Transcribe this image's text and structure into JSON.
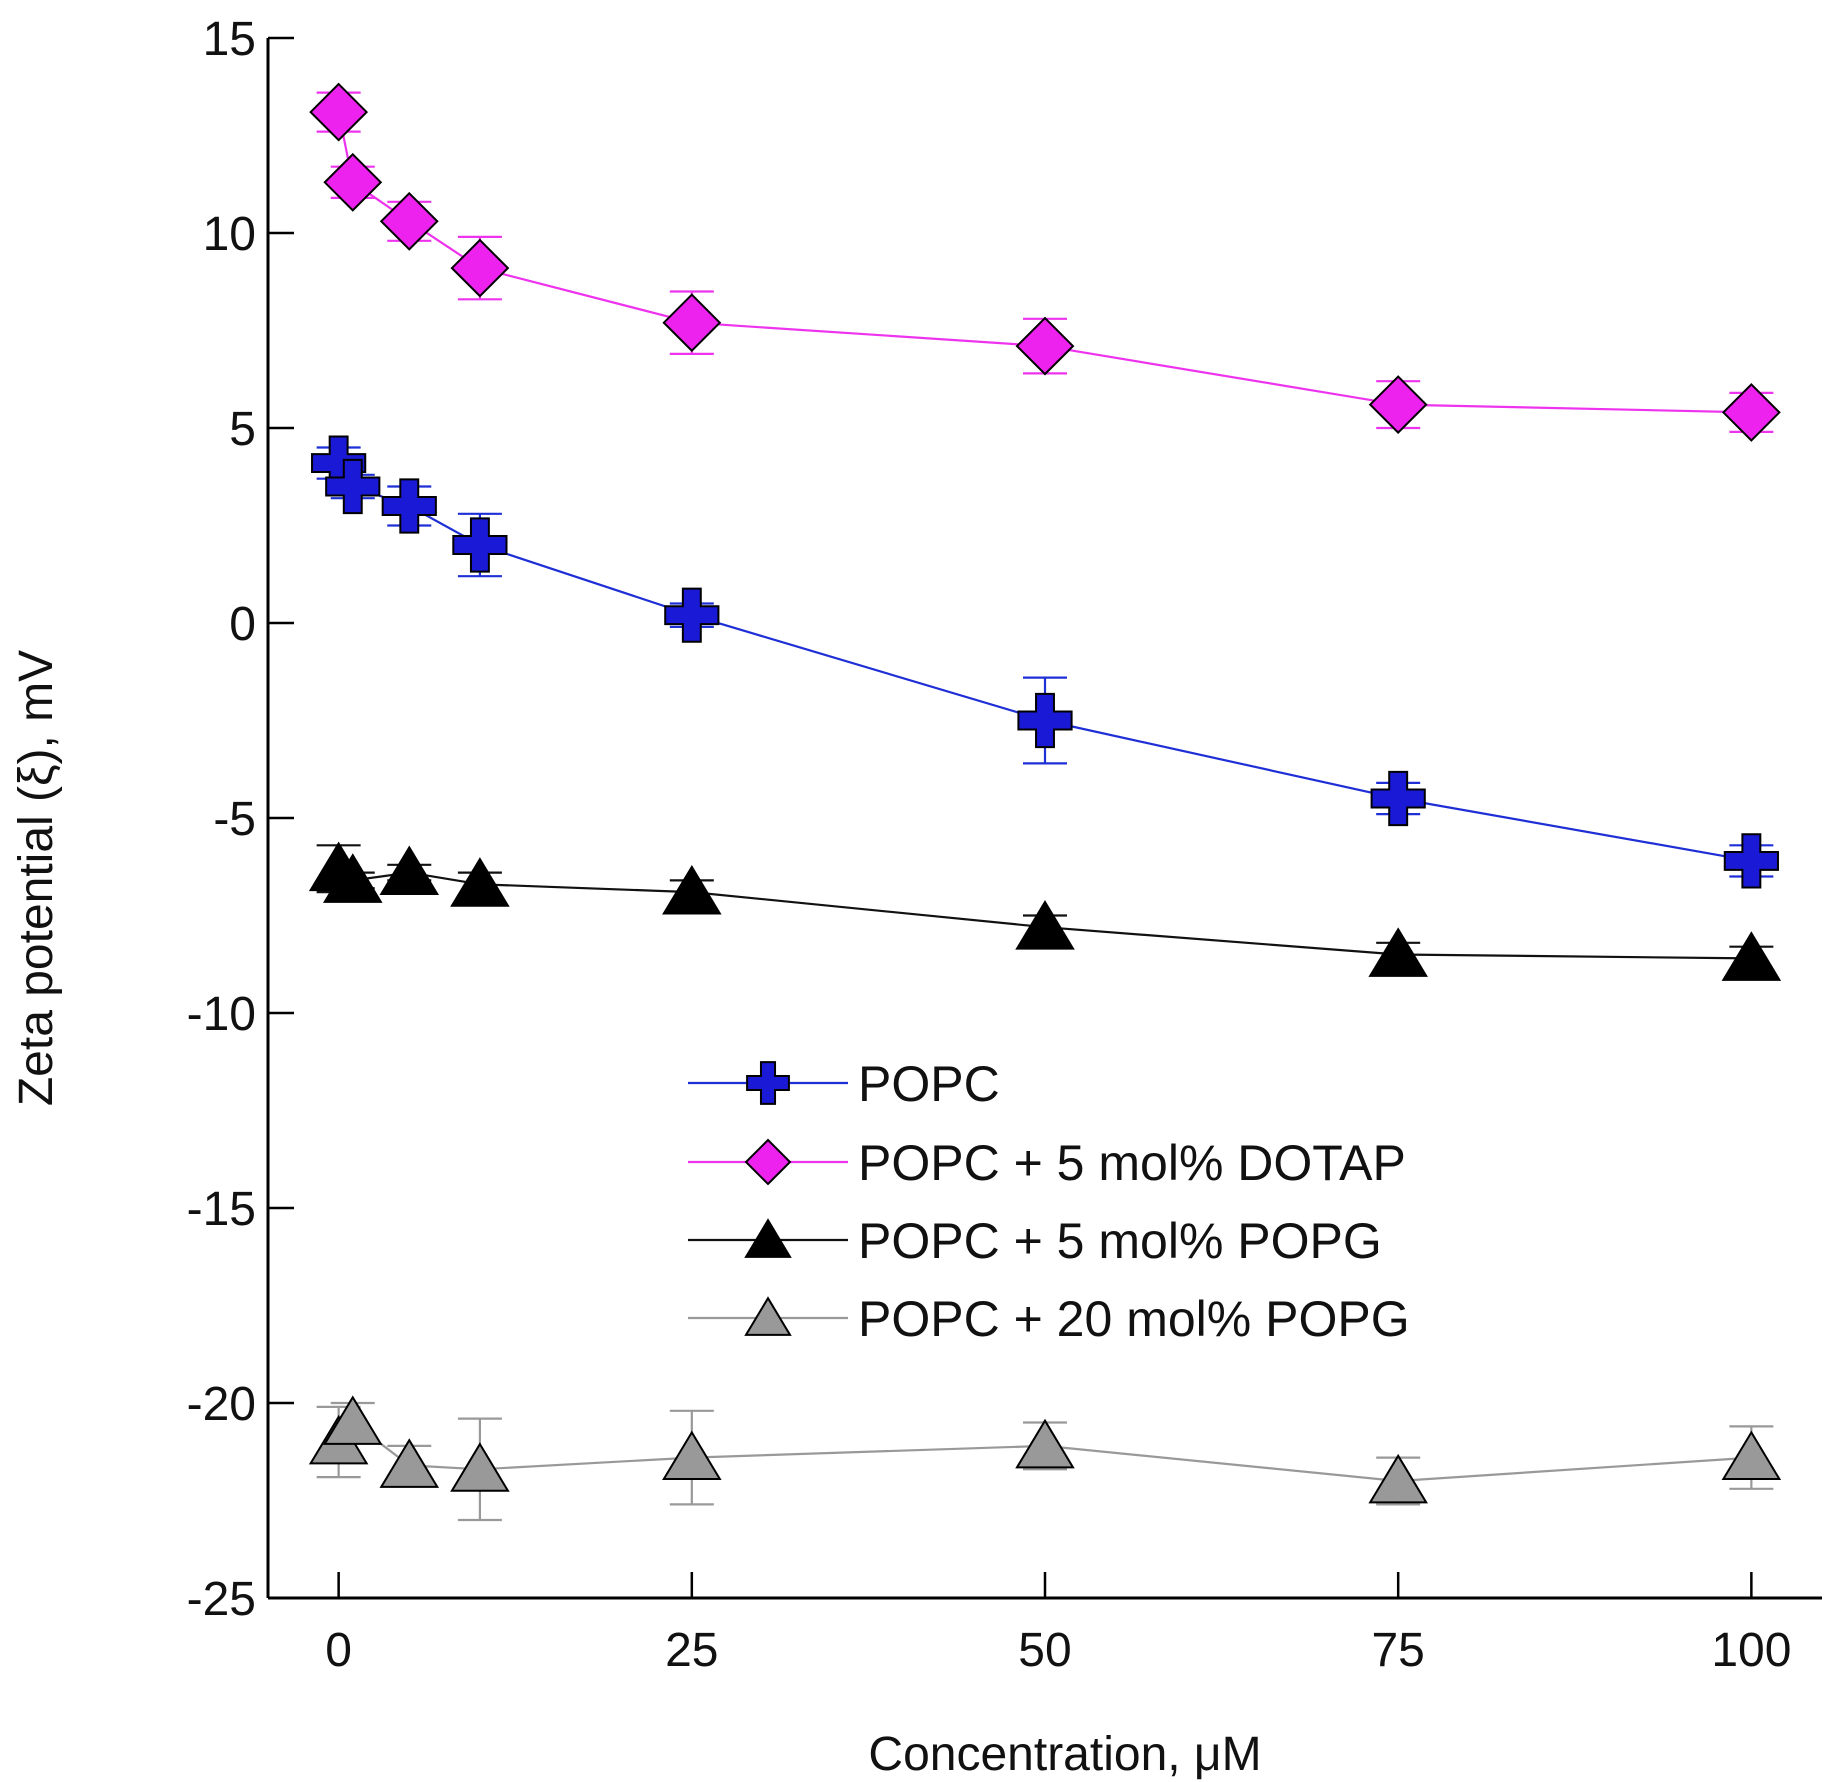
{
  "chart_data": {
    "type": "line",
    "title": "",
    "xlabel": "Concentration, μM",
    "ylabel": "Zeta potential (ξ), mV",
    "xlim": [
      -5,
      105
    ],
    "ylim": [
      -25,
      15
    ],
    "xticks": [
      0,
      25,
      50,
      75,
      100
    ],
    "yticks": [
      15,
      10,
      5,
      0,
      -5,
      -10,
      -15,
      -20,
      -25
    ],
    "x": [
      0,
      1,
      5,
      10,
      25,
      50,
      75,
      100
    ],
    "grid": false,
    "legend_position": "center",
    "series": [
      {
        "name": "POPC",
        "marker": "plus",
        "line_color": "#1f2fd6",
        "marker_fill": "#1a1ad6",
        "marker_edge": "#000000",
        "values": [
          4.1,
          3.5,
          3.0,
          2.0,
          0.2,
          -2.5,
          -4.5,
          -6.1
        ],
        "errors": [
          0.4,
          0.3,
          0.5,
          0.8,
          0.3,
          1.1,
          0.4,
          0.4
        ]
      },
      {
        "name": "POPC + 5 mol% DOTAP",
        "marker": "diamond",
        "line_color": "#ee33ee",
        "marker_fill": "#ee22ee",
        "marker_edge": "#000000",
        "values": [
          13.1,
          11.3,
          10.3,
          9.1,
          7.7,
          7.1,
          5.6,
          5.4
        ],
        "errors": [
          0.5,
          0.4,
          0.5,
          0.8,
          0.8,
          0.7,
          0.6,
          0.5
        ]
      },
      {
        "name": "POPC + 5 mol% POPG",
        "marker": "triangle",
        "line_color": "#111111",
        "marker_fill": "#000000",
        "marker_edge": "#000000",
        "values": [
          -6.3,
          -6.6,
          -6.4,
          -6.7,
          -6.9,
          -7.8,
          -8.5,
          -8.6
        ],
        "errors": [
          0.6,
          0.2,
          0.2,
          0.3,
          0.3,
          0.3,
          0.3,
          0.3
        ]
      },
      {
        "name": "POPC + 20 mol% POPG",
        "marker": "triangle",
        "line_color": "#999999",
        "marker_fill": "#999999",
        "marker_edge": "#000000",
        "values": [
          -21.0,
          -20.5,
          -21.6,
          -21.7,
          -21.4,
          -21.1,
          -22.0,
          -21.4
        ],
        "errors": [
          0.9,
          0.5,
          0.5,
          1.3,
          1.2,
          0.6,
          0.6,
          0.8
        ]
      }
    ]
  }
}
